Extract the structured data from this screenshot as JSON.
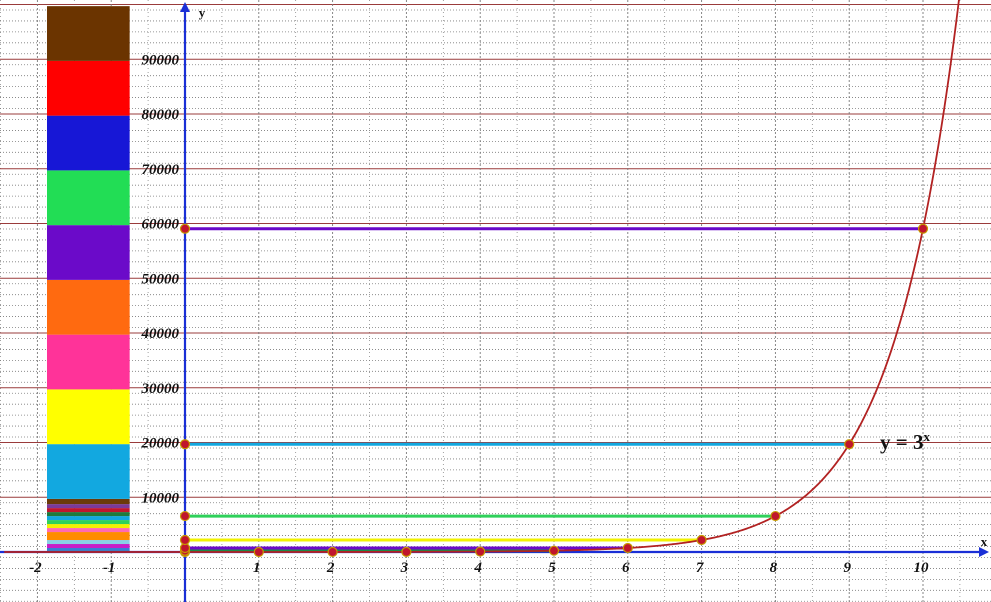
{
  "chart_data": {
    "type": "line",
    "title": "",
    "xlabel": "x",
    "ylabel": "y",
    "xlim": [
      -2.45,
      10.9
    ],
    "ylim": [
      -9000,
      99500
    ],
    "grid": true,
    "x_ticks": [
      -2,
      -1,
      1,
      2,
      3,
      4,
      5,
      6,
      7,
      8,
      9,
      10
    ],
    "y_ticks": [
      10000,
      20000,
      30000,
      40000,
      50000,
      60000,
      70000,
      80000,
      90000
    ],
    "curve": {
      "label": "y = 3",
      "label_exponent": "x",
      "base": 3,
      "color": "#b22222"
    },
    "points": [
      {
        "x": 0,
        "y": 1
      },
      {
        "x": 1,
        "y": 3
      },
      {
        "x": 2,
        "y": 9
      },
      {
        "x": 3,
        "y": 27
      },
      {
        "x": 4,
        "y": 81
      },
      {
        "x": 5,
        "y": 243
      },
      {
        "x": 6,
        "y": 729
      },
      {
        "x": 7,
        "y": 2187
      },
      {
        "x": 8,
        "y": 6561
      },
      {
        "x": 9,
        "y": 19683
      },
      {
        "x": 10,
        "y": 59049
      }
    ],
    "horizontal_lines": [
      {
        "x_end": 5,
        "y": 243,
        "color": "#1a8a4a"
      },
      {
        "x_end": 6,
        "y": 729,
        "color": "#6b0ac9"
      },
      {
        "x_end": 7,
        "y": 2187,
        "color": "#f2f200"
      },
      {
        "x_end": 8,
        "y": 6561,
        "color": "#2ed15a"
      },
      {
        "x_end": 9,
        "y": 19683,
        "color": "#12a8e0"
      },
      {
        "x_end": 10,
        "y": 59049,
        "color": "#6b0ac9"
      }
    ],
    "stacked_bar": {
      "x_range": [
        -1.87,
        -0.75
      ],
      "segments": [
        {
          "from": 0,
          "to": 243,
          "color": "#1a8a4a"
        },
        {
          "from": 243,
          "to": 729,
          "color": "#3a7ad6"
        },
        {
          "from": 729,
          "to": 1458,
          "color": "#c81dc8"
        },
        {
          "from": 1458,
          "to": 2187,
          "color": "#8ad0e6"
        },
        {
          "from": 2187,
          "to": 3645,
          "color": "#ff8c00"
        },
        {
          "from": 3645,
          "to": 4374,
          "color": "#ff69b4"
        },
        {
          "from": 4374,
          "to": 5103,
          "color": "#f2f200"
        },
        {
          "from": 5103,
          "to": 5832,
          "color": "#2ed15a"
        },
        {
          "from": 5832,
          "to": 6561,
          "color": "#12a8e0"
        },
        {
          "from": 6561,
          "to": 7290,
          "color": "#1f7a3c"
        },
        {
          "from": 7290,
          "to": 8019,
          "color": "#c0162d"
        },
        {
          "from": 8019,
          "to": 8748,
          "color": "#7a3a99"
        },
        {
          "from": 8748,
          "to": 9700,
          "color": "#6b3a08"
        },
        {
          "from": 9700,
          "to": 19700,
          "color": "#12a8e0"
        },
        {
          "from": 19700,
          "to": 29700,
          "color": "#ffff00"
        },
        {
          "from": 29700,
          "to": 39700,
          "color": "#ff3399"
        },
        {
          "from": 39700,
          "to": 49700,
          "color": "#ff6a10"
        },
        {
          "from": 49700,
          "to": 59700,
          "color": "#6b0ac9"
        },
        {
          "from": 59700,
          "to": 69700,
          "color": "#22dd55"
        },
        {
          "from": 69700,
          "to": 79700,
          "color": "#1717d6"
        },
        {
          "from": 79700,
          "to": 89700,
          "color": "#ff0000"
        },
        {
          "from": 89700,
          "to": 99700,
          "color": "#6b3400"
        }
      ]
    },
    "colors": {
      "major_grid": "#9a3b3b",
      "minor_grid": "#7a7a7a",
      "axis": "#1a2fd6",
      "point_fill": "#c0162d",
      "point_stroke": "#c79a00"
    }
  }
}
